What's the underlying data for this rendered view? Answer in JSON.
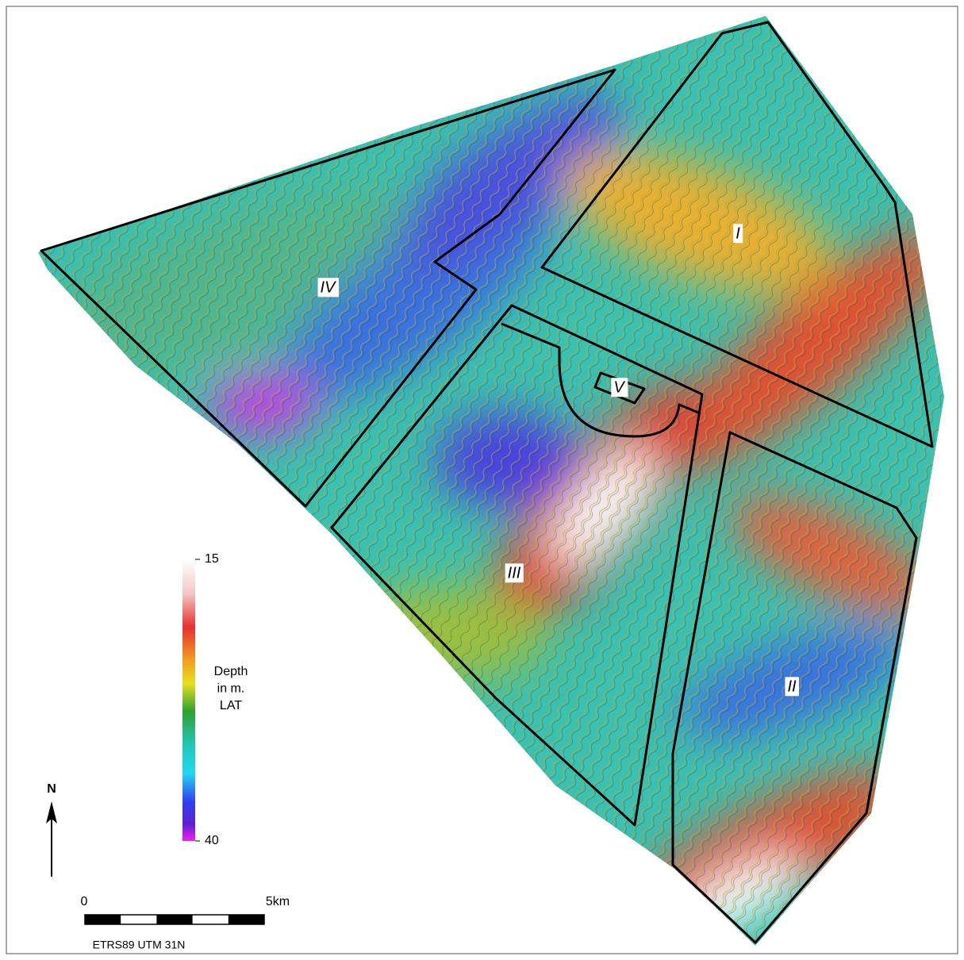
{
  "regions": [
    "I",
    "II",
    "III",
    "IV",
    "V"
  ],
  "legend": {
    "title": [
      "Depth",
      "in m.",
      "LAT"
    ],
    "ticks": [
      15,
      40
    ]
  },
  "north": "N",
  "scale_bar": {
    "labels": [
      "0",
      "5km"
    ]
  },
  "projection": "ETRS89 UTM 31N"
}
